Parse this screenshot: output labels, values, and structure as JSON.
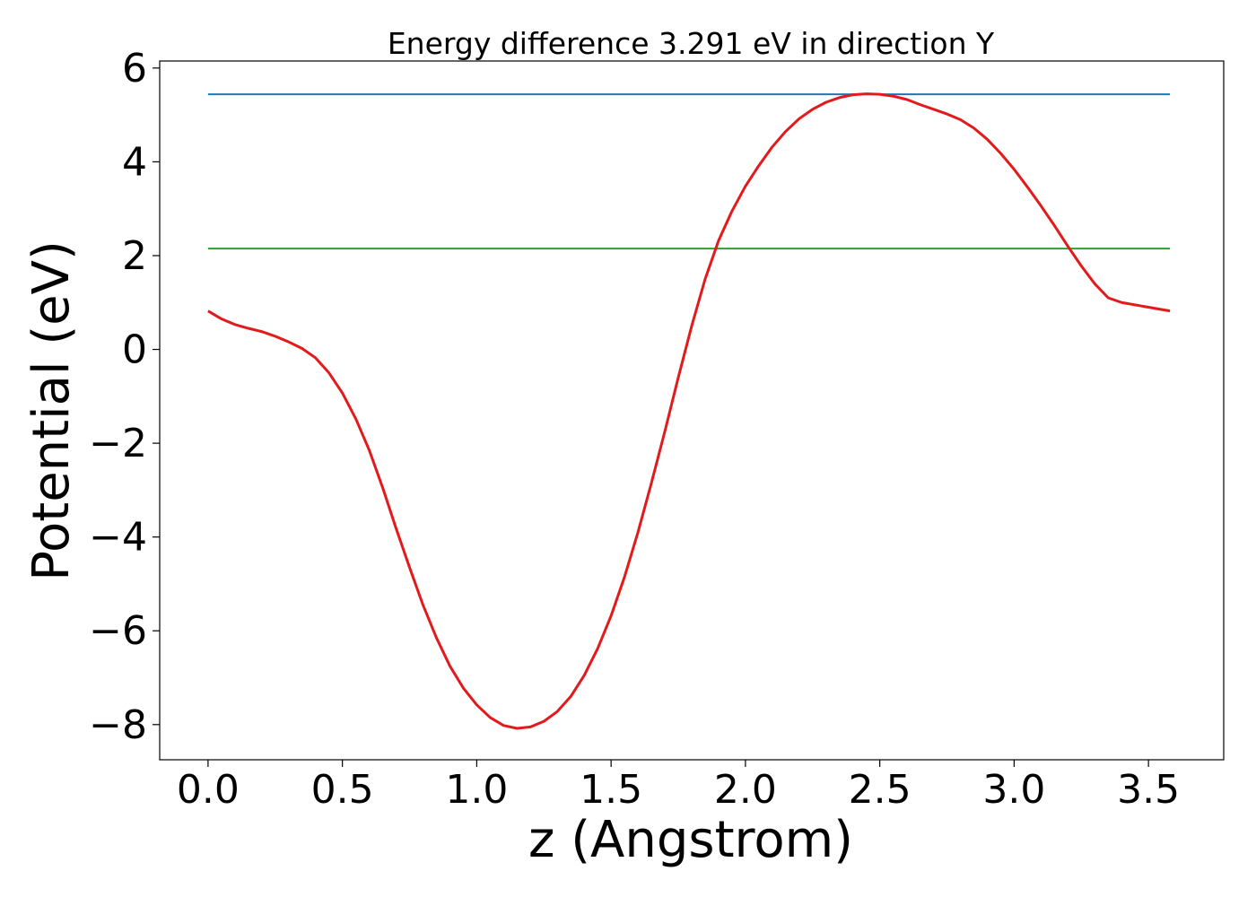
{
  "chart_data": {
    "type": "line",
    "title": "Energy difference 3.291 eV in direction Y",
    "xlabel": "z (Angstrom)",
    "ylabel": "Potential (eV)",
    "xlim": [
      -0.18,
      3.78
    ],
    "ylim": [
      -8.75,
      6.15
    ],
    "xticks": [
      0.0,
      0.5,
      1.0,
      1.5,
      2.0,
      2.5,
      3.0,
      3.5
    ],
    "xtick_labels": [
      "0.0",
      "0.5",
      "1.0",
      "1.5",
      "2.0",
      "2.5",
      "3.0",
      "3.5"
    ],
    "yticks": [
      -8,
      -6,
      -4,
      -2,
      0,
      2,
      4,
      6
    ],
    "ytick_labels": [
      "−8",
      "−6",
      "−4",
      "−2",
      "0",
      "2",
      "4",
      "6"
    ],
    "grid": false,
    "series": [
      {
        "color": "#1f77b4",
        "x": [
          0.0,
          3.58
        ],
        "y": [
          5.44,
          5.44
        ]
      },
      {
        "color": "#2ca02c",
        "x": [
          0.0,
          3.58
        ],
        "y": [
          2.15,
          2.15
        ]
      },
      {
        "color": "#e31a1c",
        "x": [
          0.0,
          0.05,
          0.1,
          0.15,
          0.2,
          0.25,
          0.3,
          0.35,
          0.4,
          0.45,
          0.5,
          0.55,
          0.6,
          0.65,
          0.7,
          0.75,
          0.8,
          0.85,
          0.9,
          0.95,
          1.0,
          1.05,
          1.1,
          1.15,
          1.2,
          1.25,
          1.3,
          1.35,
          1.4,
          1.45,
          1.5,
          1.55,
          1.6,
          1.65,
          1.7,
          1.75,
          1.8,
          1.85,
          1.9,
          1.95,
          2.0,
          2.05,
          2.1,
          2.15,
          2.2,
          2.25,
          2.3,
          2.35,
          2.4,
          2.45,
          2.5,
          2.55,
          2.6,
          2.65,
          2.7,
          2.75,
          2.8,
          2.85,
          2.9,
          2.95,
          3.0,
          3.05,
          3.1,
          3.15,
          3.2,
          3.25,
          3.3,
          3.35,
          3.4,
          3.45,
          3.5,
          3.55,
          3.58
        ],
        "y": [
          0.82,
          0.65,
          0.53,
          0.45,
          0.38,
          0.28,
          0.16,
          0.02,
          -0.18,
          -0.5,
          -0.93,
          -1.48,
          -2.15,
          -2.95,
          -3.82,
          -4.65,
          -5.45,
          -6.15,
          -6.75,
          -7.22,
          -7.58,
          -7.85,
          -8.02,
          -8.08,
          -8.05,
          -7.93,
          -7.72,
          -7.4,
          -6.95,
          -6.38,
          -5.68,
          -4.85,
          -3.9,
          -2.85,
          -1.75,
          -0.6,
          0.5,
          1.5,
          2.32,
          2.95,
          3.48,
          3.92,
          4.32,
          4.65,
          4.92,
          5.12,
          5.27,
          5.37,
          5.43,
          5.45,
          5.44,
          5.4,
          5.33,
          5.22,
          5.12,
          5.02,
          4.9,
          4.72,
          4.48,
          4.18,
          3.84,
          3.46,
          3.06,
          2.64,
          2.2,
          1.78,
          1.4,
          1.1,
          1.0,
          0.95,
          0.9,
          0.85,
          0.82
        ]
      }
    ]
  }
}
